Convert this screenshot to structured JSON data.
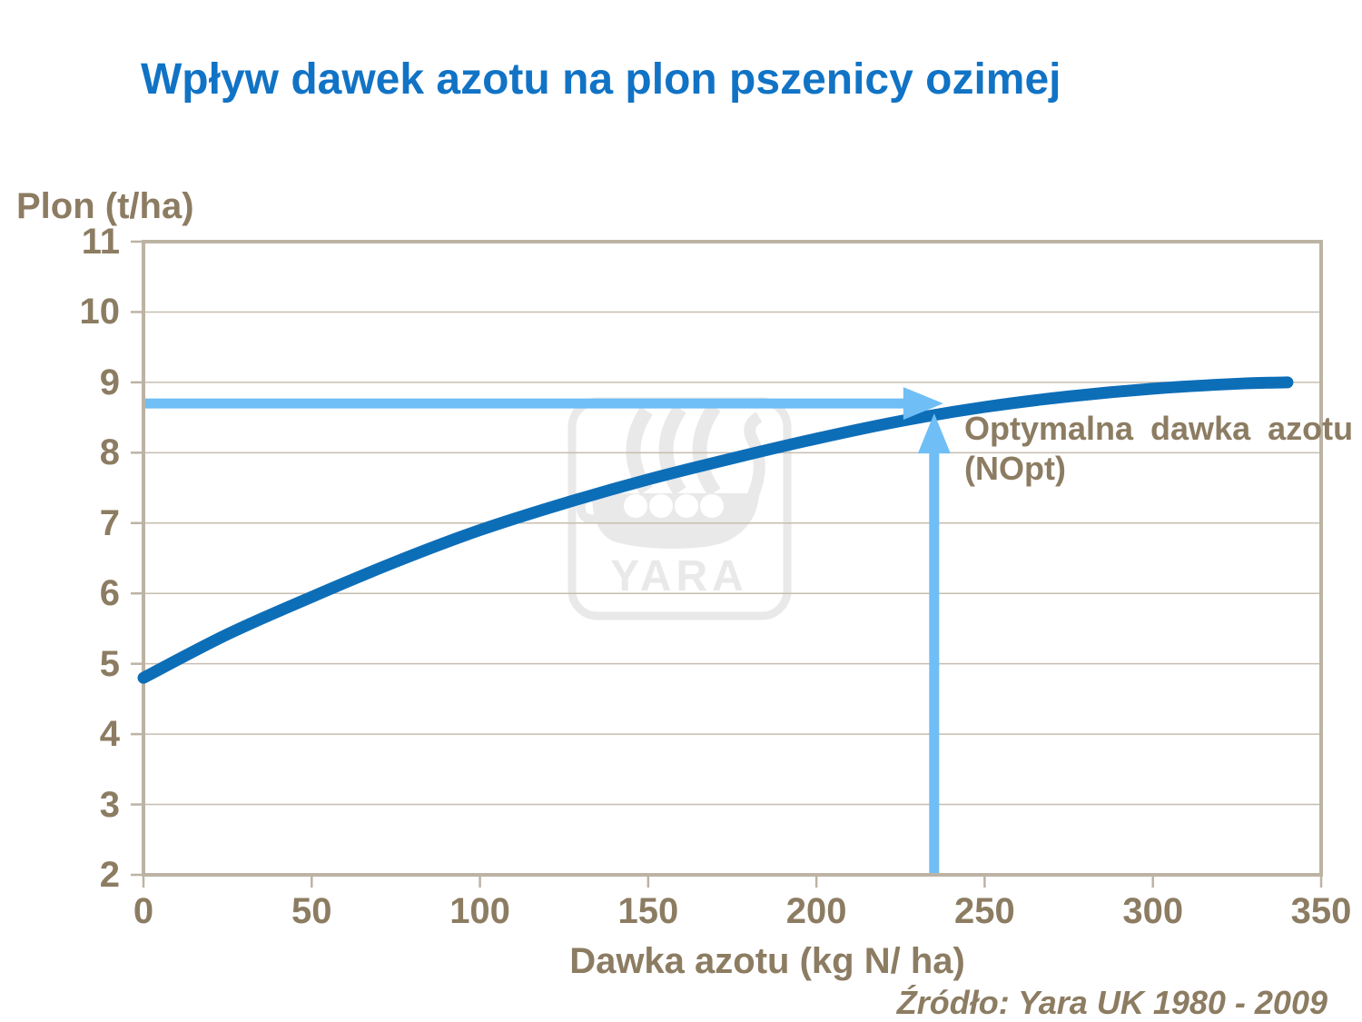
{
  "title": "Wpływ dawek azotu na plon pszenicy ozimej",
  "source": "Źródło: Yara UK 1980 - 2009",
  "watermark": {
    "text": "YARA",
    "icon": "yara-viking-ship-logo"
  },
  "annotation": {
    "line1": "Optymalna dawka azotu",
    "line2": "(NOpt)"
  },
  "colors": {
    "title_blue": "#1173C5",
    "curve_blue": "#0D6EB8",
    "arrow_light_blue": "#6FBEF5",
    "text_brown": "#8C7C62",
    "axis_tan": "#BDB3A4",
    "gridline": "#C6BDAF",
    "watermark_gray": "#E9E9E9",
    "background": "#FFFFFF"
  },
  "chart_data": {
    "type": "line",
    "title": "Wpływ dawek azotu na plon pszenicy ozimej",
    "xlabel": "Dawka azotu (kg N/ ha)",
    "ylabel": "Plon (t/ha)",
    "xlim": [
      0,
      350
    ],
    "ylim": [
      2,
      11
    ],
    "x_ticks": [
      0,
      50,
      100,
      150,
      200,
      250,
      300,
      350
    ],
    "y_ticks": [
      2,
      3,
      4,
      5,
      6,
      7,
      8,
      9,
      10,
      11
    ],
    "grid": "horizontal",
    "legend": "none",
    "series": [
      {
        "name": "Plon pszenicy ozimej",
        "color": "#0D6EB8",
        "x": [
          0,
          25,
          50,
          75,
          100,
          125,
          150,
          175,
          200,
          225,
          250,
          275,
          300,
          325,
          340
        ],
        "y": [
          4.8,
          5.42,
          5.95,
          6.45,
          6.9,
          7.28,
          7.62,
          7.92,
          8.2,
          8.45,
          8.65,
          8.8,
          8.91,
          8.98,
          9.0
        ]
      }
    ],
    "annotations": {
      "label": "Optymalna dawka azotu (NOpt)",
      "nopt_x": 235,
      "nopt_yield": 8.7,
      "arrow_color": "#6FBEF5"
    }
  }
}
